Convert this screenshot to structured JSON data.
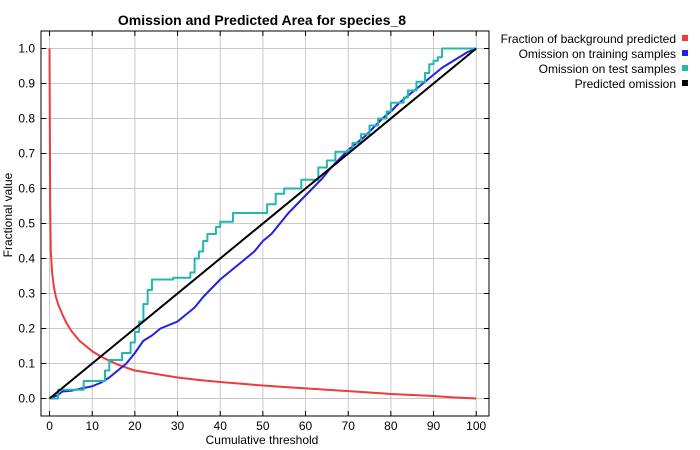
{
  "chart_data": {
    "type": "line",
    "title": "Omission and Predicted Area for species_8",
    "xlabel": "Cumulative threshold",
    "ylabel": "Fractional value",
    "xlim": [
      -2,
      103
    ],
    "ylim": [
      -0.05,
      1.05
    ],
    "xticks": [
      0,
      10,
      20,
      30,
      40,
      50,
      60,
      70,
      80,
      90,
      100
    ],
    "yticks": [
      0.0,
      0.1,
      0.2,
      0.3,
      0.4,
      0.5,
      0.6,
      0.7,
      0.8,
      0.9,
      1.0
    ],
    "xtick_labels": [
      "0",
      "10",
      "20",
      "30",
      "40",
      "50",
      "60",
      "70",
      "80",
      "90",
      "100"
    ],
    "ytick_labels": [
      "0.0",
      "0.1",
      "0.2",
      "0.3",
      "0.4",
      "0.5",
      "0.6",
      "0.7",
      "0.8",
      "0.9",
      "1.0"
    ],
    "grid": true,
    "legend_position": "outside-right",
    "series": [
      {
        "name": "Fraction of background predicted",
        "color": "#ee3b3b",
        "points": [
          [
            0,
            1.0
          ],
          [
            0.15,
            0.55
          ],
          [
            0.3,
            0.42
          ],
          [
            0.6,
            0.36
          ],
          [
            1,
            0.32
          ],
          [
            1.5,
            0.29
          ],
          [
            2,
            0.27
          ],
          [
            3,
            0.24
          ],
          [
            4,
            0.215
          ],
          [
            5,
            0.195
          ],
          [
            6,
            0.18
          ],
          [
            7,
            0.165
          ],
          [
            8,
            0.155
          ],
          [
            10,
            0.135
          ],
          [
            12,
            0.12
          ],
          [
            14,
            0.108
          ],
          [
            16,
            0.097
          ],
          [
            18,
            0.088
          ],
          [
            20,
            0.08
          ],
          [
            25,
            0.07
          ],
          [
            30,
            0.06
          ],
          [
            35,
            0.053
          ],
          [
            40,
            0.047
          ],
          [
            45,
            0.042
          ],
          [
            50,
            0.037
          ],
          [
            55,
            0.033
          ],
          [
            60,
            0.029
          ],
          [
            65,
            0.025
          ],
          [
            70,
            0.021
          ],
          [
            75,
            0.017
          ],
          [
            80,
            0.013
          ],
          [
            85,
            0.01
          ],
          [
            90,
            0.007
          ],
          [
            95,
            0.003
          ],
          [
            100,
            0.0
          ]
        ]
      },
      {
        "name": "Omission on training samples",
        "color": "#2222dd",
        "points": [
          [
            0,
            0
          ],
          [
            2,
            0.01
          ],
          [
            3,
            0.02
          ],
          [
            5,
            0.022
          ],
          [
            8,
            0.03
          ],
          [
            10,
            0.035
          ],
          [
            12,
            0.045
          ],
          [
            14,
            0.06
          ],
          [
            16,
            0.08
          ],
          [
            18,
            0.1
          ],
          [
            20,
            0.13
          ],
          [
            22,
            0.165
          ],
          [
            24,
            0.18
          ],
          [
            26,
            0.2
          ],
          [
            28,
            0.21
          ],
          [
            30,
            0.22
          ],
          [
            32,
            0.24
          ],
          [
            34,
            0.26
          ],
          [
            36,
            0.29
          ],
          [
            38,
            0.315
          ],
          [
            40,
            0.34
          ],
          [
            42,
            0.36
          ],
          [
            44,
            0.38
          ],
          [
            46,
            0.4
          ],
          [
            48,
            0.42
          ],
          [
            50,
            0.45
          ],
          [
            52,
            0.47
          ],
          [
            54,
            0.5
          ],
          [
            56,
            0.53
          ],
          [
            58,
            0.555
          ],
          [
            60,
            0.58
          ],
          [
            62,
            0.605
          ],
          [
            64,
            0.63
          ],
          [
            66,
            0.66
          ],
          [
            68,
            0.685
          ],
          [
            70,
            0.71
          ],
          [
            72,
            0.73
          ],
          [
            74,
            0.75
          ],
          [
            76,
            0.775
          ],
          [
            78,
            0.8
          ],
          [
            80,
            0.82
          ],
          [
            82,
            0.845
          ],
          [
            84,
            0.865
          ],
          [
            86,
            0.885
          ],
          [
            88,
            0.905
          ],
          [
            90,
            0.925
          ],
          [
            92,
            0.945
          ],
          [
            94,
            0.96
          ],
          [
            96,
            0.975
          ],
          [
            98,
            0.99
          ],
          [
            100,
            1.0
          ]
        ]
      },
      {
        "name": "Omission on test samples",
        "color": "#22b8b0",
        "points": [
          [
            0,
            0
          ],
          [
            2,
            0
          ],
          [
            2,
            0.025
          ],
          [
            8,
            0.025
          ],
          [
            8,
            0.05
          ],
          [
            13,
            0.05
          ],
          [
            13,
            0.08
          ],
          [
            14,
            0.08
          ],
          [
            14,
            0.11
          ],
          [
            17,
            0.11
          ],
          [
            17,
            0.13
          ],
          [
            19,
            0.13
          ],
          [
            19,
            0.16
          ],
          [
            20,
            0.16
          ],
          [
            20,
            0.19
          ],
          [
            21,
            0.19
          ],
          [
            21,
            0.22
          ],
          [
            22,
            0.22
          ],
          [
            22,
            0.27
          ],
          [
            23,
            0.27
          ],
          [
            23,
            0.31
          ],
          [
            24,
            0.31
          ],
          [
            24,
            0.34
          ],
          [
            29,
            0.34
          ],
          [
            29,
            0.345
          ],
          [
            33,
            0.345
          ],
          [
            33,
            0.36
          ],
          [
            34,
            0.36
          ],
          [
            34,
            0.4
          ],
          [
            35,
            0.4
          ],
          [
            35,
            0.42
          ],
          [
            36,
            0.42
          ],
          [
            36,
            0.45
          ],
          [
            37,
            0.45
          ],
          [
            37,
            0.47
          ],
          [
            39,
            0.47
          ],
          [
            39,
            0.49
          ],
          [
            40,
            0.49
          ],
          [
            40,
            0.505
          ],
          [
            43,
            0.505
          ],
          [
            43,
            0.53
          ],
          [
            51,
            0.53
          ],
          [
            51,
            0.555
          ],
          [
            53,
            0.555
          ],
          [
            53,
            0.585
          ],
          [
            55,
            0.585
          ],
          [
            55,
            0.6
          ],
          [
            59,
            0.6
          ],
          [
            59,
            0.625
          ],
          [
            63,
            0.625
          ],
          [
            63,
            0.66
          ],
          [
            65,
            0.66
          ],
          [
            65,
            0.68
          ],
          [
            67,
            0.68
          ],
          [
            67,
            0.705
          ],
          [
            70,
            0.705
          ],
          [
            70,
            0.71
          ],
          [
            71,
            0.71
          ],
          [
            71,
            0.73
          ],
          [
            73,
            0.73
          ],
          [
            73,
            0.755
          ],
          [
            75,
            0.755
          ],
          [
            75,
            0.78
          ],
          [
            77,
            0.78
          ],
          [
            77,
            0.8
          ],
          [
            79,
            0.8
          ],
          [
            79,
            0.82
          ],
          [
            80,
            0.82
          ],
          [
            80,
            0.845
          ],
          [
            83,
            0.845
          ],
          [
            83,
            0.86
          ],
          [
            84,
            0.86
          ],
          [
            84,
            0.88
          ],
          [
            86,
            0.88
          ],
          [
            86,
            0.905
          ],
          [
            88,
            0.905
          ],
          [
            88,
            0.93
          ],
          [
            89,
            0.93
          ],
          [
            89,
            0.955
          ],
          [
            90,
            0.955
          ],
          [
            90,
            0.965
          ],
          [
            91,
            0.965
          ],
          [
            91,
            0.975
          ],
          [
            92,
            0.975
          ],
          [
            92,
            1.0
          ],
          [
            100,
            1.0
          ]
        ]
      },
      {
        "name": "Predicted omission",
        "color": "#000000",
        "points": [
          [
            0,
            0
          ],
          [
            100,
            1
          ]
        ]
      }
    ]
  }
}
